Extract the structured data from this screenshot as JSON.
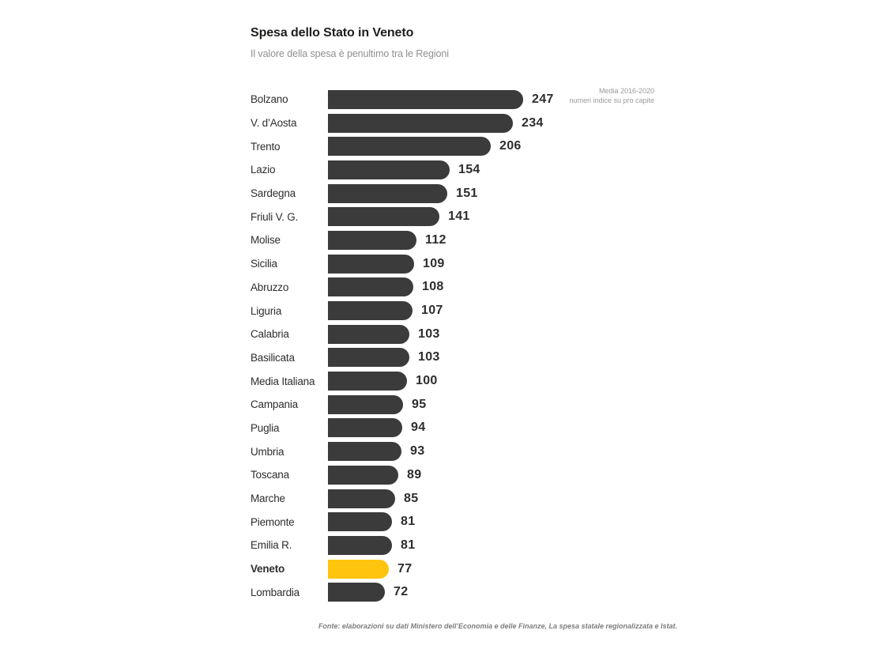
{
  "header": {
    "title": "Spesa dello Stato in Veneto",
    "subtitle": "Il valore della spesa è penultimo tra le Regioni"
  },
  "annotation": {
    "line1": "Media 2016-2020",
    "line2": "numeri indice su pro capite"
  },
  "source": "Fonte: elaborazioni su dati Ministero dell’Economia e delle Finanze, La spesa statale regionalizzata e Istat.",
  "chart_data": {
    "type": "bar",
    "orientation": "horizontal",
    "title": "Spesa dello Stato in Veneto",
    "subtitle": "Il valore della spesa è penultimo tra le Regioni",
    "unit_note": "Media 2016-2020, numeri indice su pro capite",
    "categories": [
      "Bolzano",
      "V. d’Aosta",
      "Trento",
      "Lazio",
      "Sardegna",
      "Friuli V. G.",
      "Molise",
      "Sicilia",
      "Abruzzo",
      "Liguria",
      "Calabria",
      "Basilicata",
      "Media Italiana",
      "Campania",
      "Puglia",
      "Umbria",
      "Toscana",
      "Marche",
      "Piemonte",
      "Emilia R.",
      "Veneto",
      "Lombardia"
    ],
    "values": [
      247,
      234,
      206,
      154,
      151,
      141,
      112,
      109,
      108,
      107,
      103,
      103,
      100,
      95,
      94,
      93,
      89,
      85,
      81,
      81,
      77,
      72
    ],
    "highlight_category": "Veneto",
    "xlim": [
      0,
      247
    ],
    "bar_color": "#3b3b3b",
    "highlight_color": "#ffc40d",
    "value_labels": true,
    "grid": false,
    "legend": false
  }
}
